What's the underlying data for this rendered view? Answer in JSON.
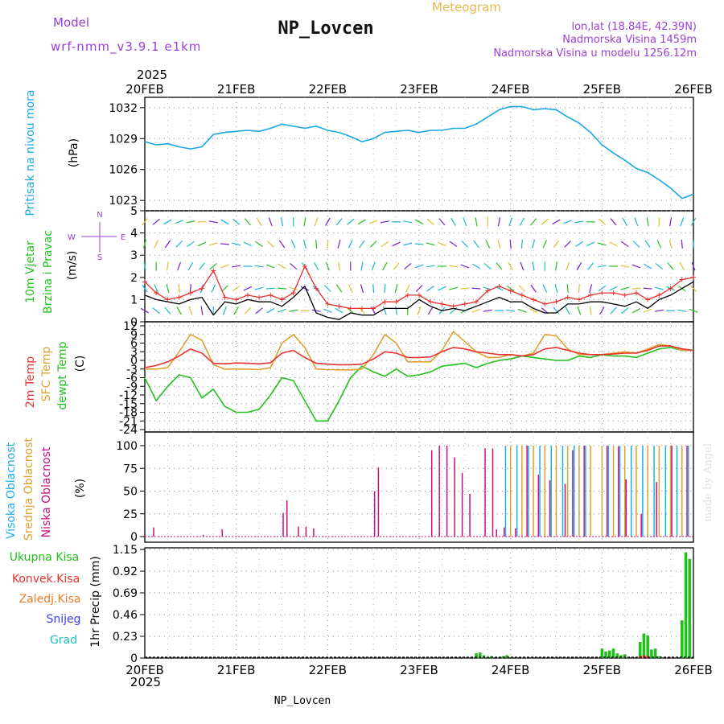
{
  "header": {
    "model_label": "Model",
    "model_name": "wrf-nmm_v3.9.1 e1km",
    "title": "NP_Lovcen",
    "meteogram_label": "Meteogram",
    "lonlat": "lon,lat (18.84E, 42.39N)",
    "elevation": "Nadmorska Visina 1459m",
    "model_elevation": "Nadmorska Visina u modelu 1256.12m",
    "footer_title": "NP_Lovcen",
    "watermark": "made by Angel"
  },
  "time_axis": {
    "year": "2025",
    "labels": [
      "20FEB",
      "21FEB",
      "22FEB",
      "23FEB",
      "24FEB",
      "25FEB",
      "26FEB"
    ],
    "range_hours": [
      0,
      144
    ]
  },
  "colors": {
    "pressure": "#1aa7e6",
    "temp2m": "#e8322f",
    "sfc_temp": "#e0a030",
    "dewpoint": "#22c11b",
    "high_cloud": "#1eaee6",
    "mid_cloud": "#e0a030",
    "low_cloud": "#c8117c",
    "total_precip": "#22c11b",
    "conv_precip": "#e8322f",
    "frozen_precip": "#f07c26",
    "snow": "#3c3ce8",
    "hail": "#1bbfbf",
    "title_purple": "#9b40d8",
    "title_orange": "#e8b84a"
  },
  "panels": {
    "pressure": {
      "ylabel_left": "Pritisak na nivou mora",
      "unit": "(hPa)",
      "ticks": [
        "1023",
        "1026",
        "1029",
        "1032"
      ]
    },
    "wind": {
      "ylabel_left1": "10m Vjetar",
      "ylabel_left2": "Brzina i Pravac",
      "unit": "(m/s)",
      "ticks": [
        "0",
        "1",
        "2",
        "3",
        "4",
        "5"
      ],
      "compass": {
        "n": "N",
        "s": "S",
        "e": "E",
        "w": "W"
      }
    },
    "temperature": {
      "ylabel_a": "2m Temp",
      "ylabel_b": "SFC Temp",
      "ylabel_c": "dewpt Temp",
      "unit": "(C)",
      "ticks": [
        "-24",
        "-21",
        "-18",
        "-15",
        "-12",
        "-9",
        "-6",
        "-3",
        "0",
        "3",
        "6",
        "9",
        "12"
      ]
    },
    "clouds": {
      "ylabel_a": "Visoka Oblacnost",
      "ylabel_b": "Srednja Oblacnost",
      "ylabel_c": "Niska Oblacnost",
      "unit": "(%)",
      "ticks": [
        "0",
        "25",
        "50",
        "75",
        "100"
      ]
    },
    "precip": {
      "legend": [
        "Ukupna Kisa",
        "Konvek.Kisa",
        "Zaledj.Kisa",
        "Snijeg",
        "Grad"
      ],
      "ylabel": "1hr Precip (mm)",
      "ticks": [
        "0",
        "0.23",
        "0.46",
        "0.69",
        "0.92",
        "1.15"
      ]
    }
  },
  "chart_data": [
    {
      "type": "line",
      "title": "Pritisak na nivou mora",
      "ylabel": "(hPa)",
      "ylim": [
        1022,
        1033
      ],
      "x_hours": [
        0,
        3,
        6,
        9,
        12,
        15,
        18,
        21,
        24,
        27,
        30,
        33,
        36,
        39,
        42,
        45,
        48,
        51,
        54,
        57,
        60,
        63,
        66,
        69,
        72,
        75,
        78,
        81,
        84,
        87,
        90,
        93,
        96,
        99,
        102,
        105,
        108,
        111,
        114,
        117,
        120,
        123,
        126,
        129,
        132,
        135,
        138,
        141,
        144
      ],
      "series": [
        {
          "values": [
            1028.7,
            1028.4,
            1028.5,
            1028.2,
            1028.0,
            1028.2,
            1029.4,
            1029.6,
            1029.7,
            1029.8,
            1029.7,
            1030.0,
            1030.4,
            1030.2,
            1030.0,
            1030.2,
            1029.8,
            1029.6,
            1029.2,
            1028.7,
            1029.0,
            1029.6,
            1029.7,
            1029.8,
            1029.6,
            1029.8,
            1029.8,
            1030.0,
            1030.0,
            1030.4,
            1031.1,
            1031.8,
            1032.1,
            1032.1,
            1031.8,
            1031.9,
            1031.8,
            1031.1,
            1030.5,
            1029.6,
            1028.4,
            1027.6,
            1026.9,
            1026.1,
            1025.7,
            1025.0,
            1024.2,
            1023.2,
            1023.6
          ]
        }
      ]
    },
    {
      "type": "line",
      "title": "10m Vjetar Brzina i Pravac",
      "ylabel": "(m/s)",
      "ylim": [
        0,
        5
      ],
      "x_hours": [
        0,
        3,
        6,
        9,
        12,
        15,
        18,
        21,
        24,
        27,
        30,
        33,
        36,
        39,
        42,
        45,
        48,
        51,
        54,
        57,
        60,
        63,
        66,
        69,
        72,
        75,
        78,
        81,
        84,
        87,
        90,
        93,
        96,
        99,
        102,
        105,
        108,
        111,
        114,
        117,
        120,
        123,
        126,
        129,
        132,
        135,
        138,
        141,
        144
      ],
      "series": [
        {
          "values": [
            1.8,
            1.3,
            1.0,
            1.1,
            1.3,
            1.5,
            2.3,
            1.1,
            1.0,
            1.2,
            1.1,
            1.2,
            1.0,
            1.3,
            2.5,
            1.5,
            0.8,
            0.7,
            0.6,
            0.6,
            0.6,
            0.9,
            0.9,
            1.2,
            1.2,
            0.9,
            0.8,
            0.7,
            0.8,
            0.9,
            1.4,
            1.6,
            1.4,
            1.2,
            1.0,
            0.8,
            0.9,
            1.1,
            1.0,
            1.2,
            1.3,
            1.3,
            1.2,
            1.3,
            1.0,
            1.2,
            1.5,
            1.9,
            2.0
          ]
        },
        {
          "values": [
            1.2,
            1.0,
            0.9,
            0.8,
            1.0,
            1.1,
            0.3,
            0.9,
            0.8,
            1.0,
            0.9,
            0.9,
            0.7,
            1.1,
            1.6,
            0.4,
            0.2,
            0.1,
            0.4,
            0.3,
            0.3,
            0.6,
            0.6,
            0.6,
            1.0,
            0.7,
            0.5,
            0.6,
            0.5,
            0.7,
            0.9,
            1.1,
            0.9,
            0.9,
            0.6,
            0.4,
            0.4,
            0.8,
            0.8,
            0.9,
            0.9,
            0.8,
            0.7,
            0.9,
            0.6,
            1.0,
            1.2,
            1.5,
            1.8
          ]
        }
      ],
      "wind_dirs_deg": [
        120,
        130,
        140,
        150,
        160,
        170,
        180,
        200,
        210,
        220,
        230,
        240,
        250,
        260,
        270,
        280,
        290,
        300,
        310,
        320,
        330,
        340,
        350,
        360,
        200,
        210,
        220,
        230,
        240,
        250,
        260,
        270,
        280,
        290,
        300,
        310,
        320,
        330,
        340,
        350,
        30,
        40,
        50,
        60,
        70,
        80,
        90,
        100,
        110
      ]
    },
    {
      "type": "line",
      "title": "2m Temp / SFC Temp / dewpt Temp",
      "ylabel": "(C)",
      "ylim": [
        -24,
        12
      ],
      "x_hours": [
        0,
        3,
        6,
        9,
        12,
        15,
        18,
        21,
        24,
        27,
        30,
        33,
        36,
        39,
        42,
        45,
        48,
        51,
        54,
        57,
        60,
        63,
        66,
        69,
        72,
        75,
        78,
        81,
        84,
        87,
        90,
        93,
        96,
        99,
        102,
        105,
        108,
        111,
        114,
        117,
        120,
        123,
        126,
        129,
        132,
        135,
        138,
        141,
        144
      ],
      "series": [
        {
          "values": [
            -2.5,
            -1.8,
            -0.5,
            1.5,
            4.0,
            2.5,
            -1.0,
            -1.2,
            -0.9,
            -1.0,
            -1.2,
            -0.8,
            2.5,
            3.5,
            1.0,
            -1.0,
            -1.3,
            -1.5,
            -1.5,
            -1.3,
            0.5,
            3.0,
            2.5,
            1.0,
            1.0,
            1.2,
            3.0,
            4.5,
            4.0,
            3.0,
            2.5,
            2.0,
            2.0,
            1.5,
            2.0,
            4.0,
            4.5,
            3.5,
            2.5,
            2.0,
            2.0,
            2.2,
            2.5,
            2.5,
            3.5,
            5.0,
            5.0,
            4.0,
            3.5
          ]
        },
        {
          "values": [
            -3.0,
            -3.0,
            -2.5,
            3.0,
            9.0,
            7.0,
            -1.5,
            -3.0,
            -3.0,
            -3.0,
            -3.2,
            -2.5,
            6.0,
            9.0,
            4.5,
            -3.0,
            -3.2,
            -3.3,
            -3.3,
            -3.0,
            2.0,
            9.0,
            6.0,
            -0.5,
            -0.5,
            -0.5,
            3.5,
            10.0,
            6.5,
            3.0,
            1.0,
            1.0,
            2.0,
            1.5,
            2.5,
            9.0,
            8.5,
            4.0,
            2.0,
            2.0,
            2.0,
            2.5,
            3.0,
            2.5,
            4.0,
            5.5,
            5.0,
            3.5,
            3.5
          ]
        },
        {
          "values": [
            -6.0,
            -14.0,
            -9.0,
            -5.0,
            -6.0,
            -13.0,
            -10.0,
            -16.0,
            -18.0,
            -18.0,
            -17.0,
            -12.0,
            -6.0,
            -7.0,
            -14.0,
            -21.0,
            -21.0,
            -14.0,
            -6.0,
            -2.0,
            -4.0,
            -5.5,
            -3.0,
            -5.5,
            -5.0,
            -4.0,
            -2.0,
            -1.5,
            -1.0,
            -2.5,
            -1.0,
            0.0,
            0.5,
            1.5,
            1.0,
            0.5,
            0.0,
            0.0,
            1.5,
            1.0,
            2.0,
            1.5,
            1.5,
            1.0,
            2.5,
            4.0,
            4.5,
            3.5,
            3.5
          ]
        }
      ]
    },
    {
      "type": "bar",
      "title": "Visoka / Srednja / Niska Oblacnost",
      "ylabel": "(%)",
      "ylim": [
        0,
        100
      ],
      "series": [
        {
          "x_hours": [
            95,
            98,
            101,
            104,
            107,
            110,
            113,
            116,
            122,
            125,
            128,
            131,
            134,
            137,
            140,
            143
          ],
          "values": [
            100,
            100,
            100,
            100,
            100,
            100,
            100,
            100,
            100,
            100,
            100,
            100,
            100,
            100,
            100,
            100
          ]
        },
        {
          "x_hours": [
            96,
            99,
            102,
            105,
            108,
            111,
            114,
            117,
            120,
            123,
            126,
            129,
            132,
            135,
            138,
            141
          ],
          "values": [
            100,
            100,
            100,
            100,
            100,
            100,
            100,
            100,
            100,
            100,
            100,
            100,
            100,
            100,
            100,
            100
          ]
        },
        {
          "x_hours": [
            2,
            15,
            20,
            36,
            37,
            40,
            42,
            44,
            60,
            61,
            75,
            77,
            79,
            81,
            83,
            85,
            89,
            91,
            92,
            94,
            97,
            100,
            103,
            106,
            110,
            112,
            115,
            121,
            124,
            126,
            130,
            134,
            138,
            142
          ],
          "values": [
            10,
            2,
            8,
            26,
            40,
            11,
            11,
            9,
            50,
            76,
            95,
            100,
            100,
            87,
            70,
            47,
            97,
            97,
            8,
            10,
            9,
            100,
            68,
            62,
            58,
            95,
            100,
            100,
            99,
            63,
            25,
            60,
            100,
            100
          ]
        }
      ]
    },
    {
      "type": "bar",
      "title": "1hr Precip",
      "ylabel": "1hr Precip (mm)",
      "ylim": [
        0,
        1.15
      ],
      "series": [
        {
          "x_hours": [
            87,
            88,
            89,
            91,
            94,
            95,
            120,
            121,
            122,
            123,
            124,
            125,
            126,
            130,
            131,
            132,
            133,
            134,
            135,
            141,
            142,
            143
          ],
          "values": [
            0.05,
            0.06,
            0.03,
            0.02,
            0.02,
            0.03,
            0.1,
            0.07,
            0.08,
            0.1,
            0.05,
            0.03,
            0.04,
            0.17,
            0.26,
            0.24,
            0.09,
            0.1,
            0.02,
            0.4,
            1.12,
            1.05
          ]
        },
        {
          "x_hours": [
            130,
            131,
            132
          ],
          "values": [
            0.02,
            0.03,
            0.02
          ]
        },
        {
          "x_hours": [],
          "values": []
        },
        {
          "x_hours": [],
          "values": []
        },
        {
          "x_hours": [],
          "values": []
        }
      ]
    }
  ]
}
